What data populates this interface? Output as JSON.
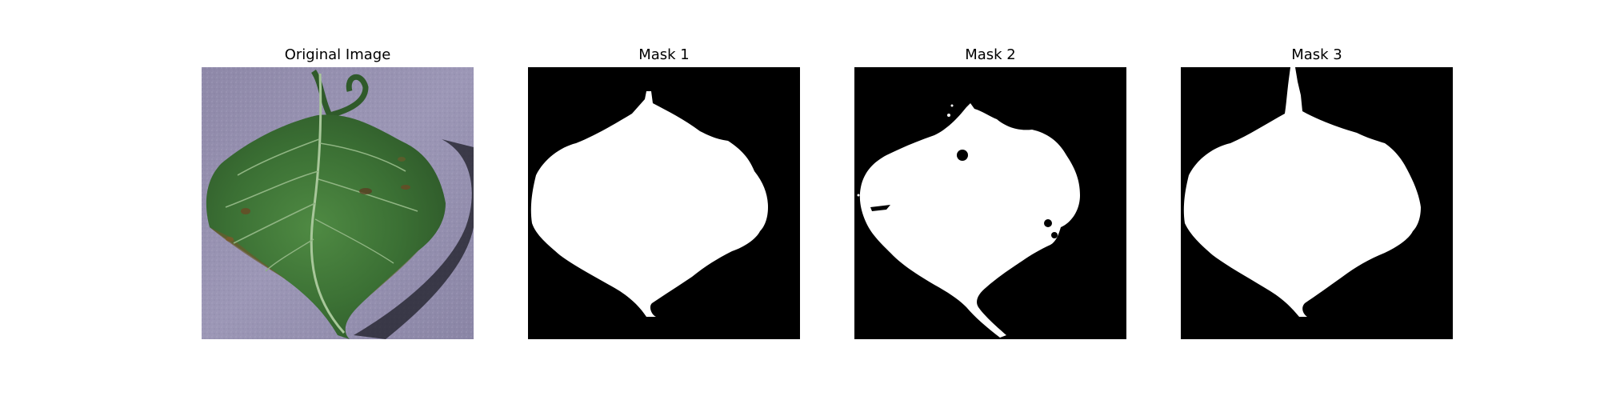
{
  "figure": {
    "panels": [
      {
        "id": "original",
        "title": "Original Image"
      },
      {
        "id": "mask1",
        "title": "Mask 1"
      },
      {
        "id": "mask2",
        "title": "Mask 2"
      },
      {
        "id": "mask3",
        "title": "Mask 3"
      }
    ]
  },
  "colors": {
    "figure_background": "#ffffff",
    "mask_background": "#000000",
    "mask_foreground": "#ffffff",
    "leaf_green": "#3f7a3a",
    "leaf_shadow_bg": "#8b86a8"
  }
}
